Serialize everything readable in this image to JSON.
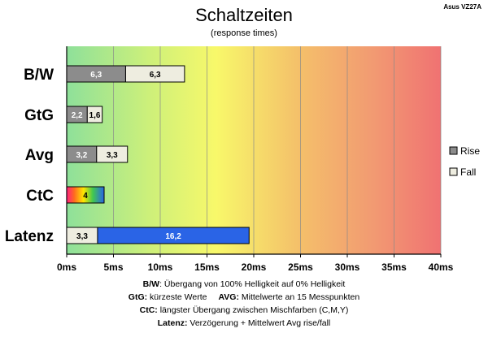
{
  "header": {
    "title": "Schaltzeiten",
    "subtitle": "(response times)",
    "model": "Asus VZ27A"
  },
  "chart_data": {
    "type": "bar",
    "orientation": "horizontal",
    "stacked": true,
    "categories": [
      "B/W",
      "GtG",
      "Avg",
      "CtC",
      "Latenz"
    ],
    "series": [
      {
        "name": "Rise",
        "values": [
          6.3,
          2.2,
          3.2,
          null,
          null
        ],
        "labels": [
          "6,3",
          "2,2",
          "3,2",
          "",
          ""
        ],
        "color": "#8c8c8c"
      },
      {
        "name": "Fall",
        "values": [
          6.3,
          1.6,
          3.3,
          null,
          3.3
        ],
        "labels": [
          "6,3",
          "1,6",
          "3,3",
          "",
          "3,3"
        ],
        "color": "#eeede0"
      },
      {
        "name": "CtC",
        "values": [
          null,
          null,
          null,
          4,
          null
        ],
        "labels": [
          "",
          "",
          "",
          "4",
          ""
        ],
        "color": "gradient-rainbow"
      },
      {
        "name": "Latenz",
        "values": [
          null,
          null,
          null,
          null,
          16.2
        ],
        "labels": [
          "",
          "",
          "",
          "",
          "16,2"
        ],
        "color": "#2a64e6"
      }
    ],
    "legend": [
      {
        "label": "Rise",
        "color": "#8c8c8c"
      },
      {
        "label": "Fall",
        "color": "#eeede0"
      }
    ],
    "legend_position": "right",
    "xlim": [
      0,
      40
    ],
    "xticks": [
      0,
      5,
      10,
      15,
      20,
      25,
      30,
      35,
      40
    ],
    "xtick_labels": [
      "0ms",
      "5ms",
      "10ms",
      "15ms",
      "20ms",
      "25ms",
      "30ms",
      "35ms",
      "40ms"
    ],
    "grid": "vertical",
    "background": "gradient green-yellow-red"
  },
  "footnotes": {
    "bw_key": "B/W",
    "bw_text": ":  Übergang von 100% Helligkeit auf 0% Helligkeit",
    "gtg_key": "GtG:",
    "gtg_text": " kürzeste  Werte",
    "avg_key": "AVG:",
    "avg_text": " Mittelwerte  an 15 Messpunkten",
    "ctc_key": "CtC:",
    "ctc_text": " längster Übergang  zwischen Mischfarben  (C,M,Y)",
    "latenz_key": "Latenz:",
    "latenz_text": " Verzögerung  + Mittelwert Avg rise/fall"
  }
}
